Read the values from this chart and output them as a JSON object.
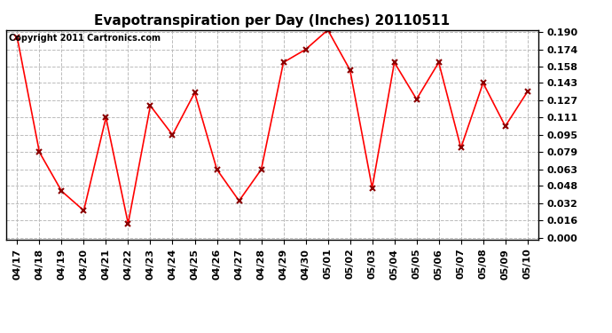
{
  "title": "Evapotranspiration per Day (Inches) 20110511",
  "copyright_text": "Copyright 2011 Cartronics.com",
  "x_labels": [
    "04/17",
    "04/18",
    "04/19",
    "04/20",
    "04/21",
    "04/22",
    "04/23",
    "04/24",
    "04/25",
    "04/26",
    "04/27",
    "04/28",
    "04/29",
    "04/30",
    "05/01",
    "05/02",
    "05/03",
    "05/04",
    "05/05",
    "05/06",
    "05/07",
    "05/08",
    "05/09",
    "05/10"
  ],
  "y_values": [
    0.185,
    0.079,
    0.043,
    0.025,
    0.111,
    0.013,
    0.122,
    0.095,
    0.134,
    0.063,
    0.034,
    0.063,
    0.162,
    0.174,
    0.192,
    0.155,
    0.046,
    0.162,
    0.128,
    0.162,
    0.083,
    0.143,
    0.103,
    0.135
  ],
  "y_min": 0.0,
  "y_max": 0.19,
  "y_ticks": [
    0.0,
    0.016,
    0.032,
    0.048,
    0.063,
    0.079,
    0.095,
    0.111,
    0.127,
    0.143,
    0.158,
    0.174,
    0.19
  ],
  "line_color": "red",
  "marker": "x",
  "marker_color": "darkred",
  "bg_color": "white",
  "grid_color": "#bbbbbb",
  "title_fontsize": 11,
  "tick_fontsize": 8,
  "copyright_fontsize": 7
}
